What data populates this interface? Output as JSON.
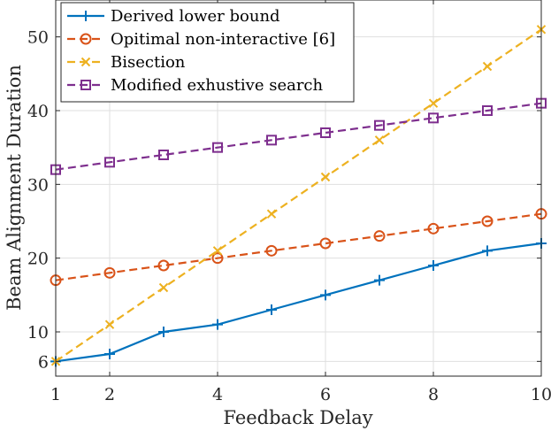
{
  "chart_data": {
    "type": "line",
    "xlabel": "Feedback Delay",
    "ylabel": "Beam Alignment Duration",
    "xlim": [
      1,
      10
    ],
    "ylim": [
      4,
      55
    ],
    "x_ticks": [
      1,
      2,
      4,
      6,
      8,
      10
    ],
    "y_ticks": [
      6,
      10,
      20,
      30,
      40,
      50
    ],
    "grid": true,
    "legend_position": "top-left",
    "x": [
      1,
      2,
      3,
      4,
      5,
      6,
      7,
      8,
      9,
      10
    ],
    "series": [
      {
        "name": "Derived lower bound",
        "color": "#0072BD",
        "marker": "plus",
        "line_style": "solid",
        "values": [
          6,
          7,
          10,
          11,
          13,
          15,
          17,
          19,
          21,
          22
        ]
      },
      {
        "name": "Opitimal non-interactive [6]",
        "color": "#D95319",
        "marker": "circle",
        "line_style": "dashed",
        "values": [
          17,
          18,
          19,
          20,
          21,
          22,
          23,
          24,
          25,
          26
        ]
      },
      {
        "name": "Bisection",
        "color": "#EDB120",
        "marker": "x",
        "line_style": "dashed",
        "values": [
          6,
          11,
          16,
          21,
          26,
          31,
          36,
          41,
          46,
          51
        ]
      },
      {
        "name": "Modified exhustive search",
        "color": "#7E2F8E",
        "marker": "square",
        "line_style": "dashed",
        "values": [
          32,
          33,
          34,
          35,
          36,
          37,
          38,
          39,
          40,
          41
        ]
      }
    ]
  }
}
